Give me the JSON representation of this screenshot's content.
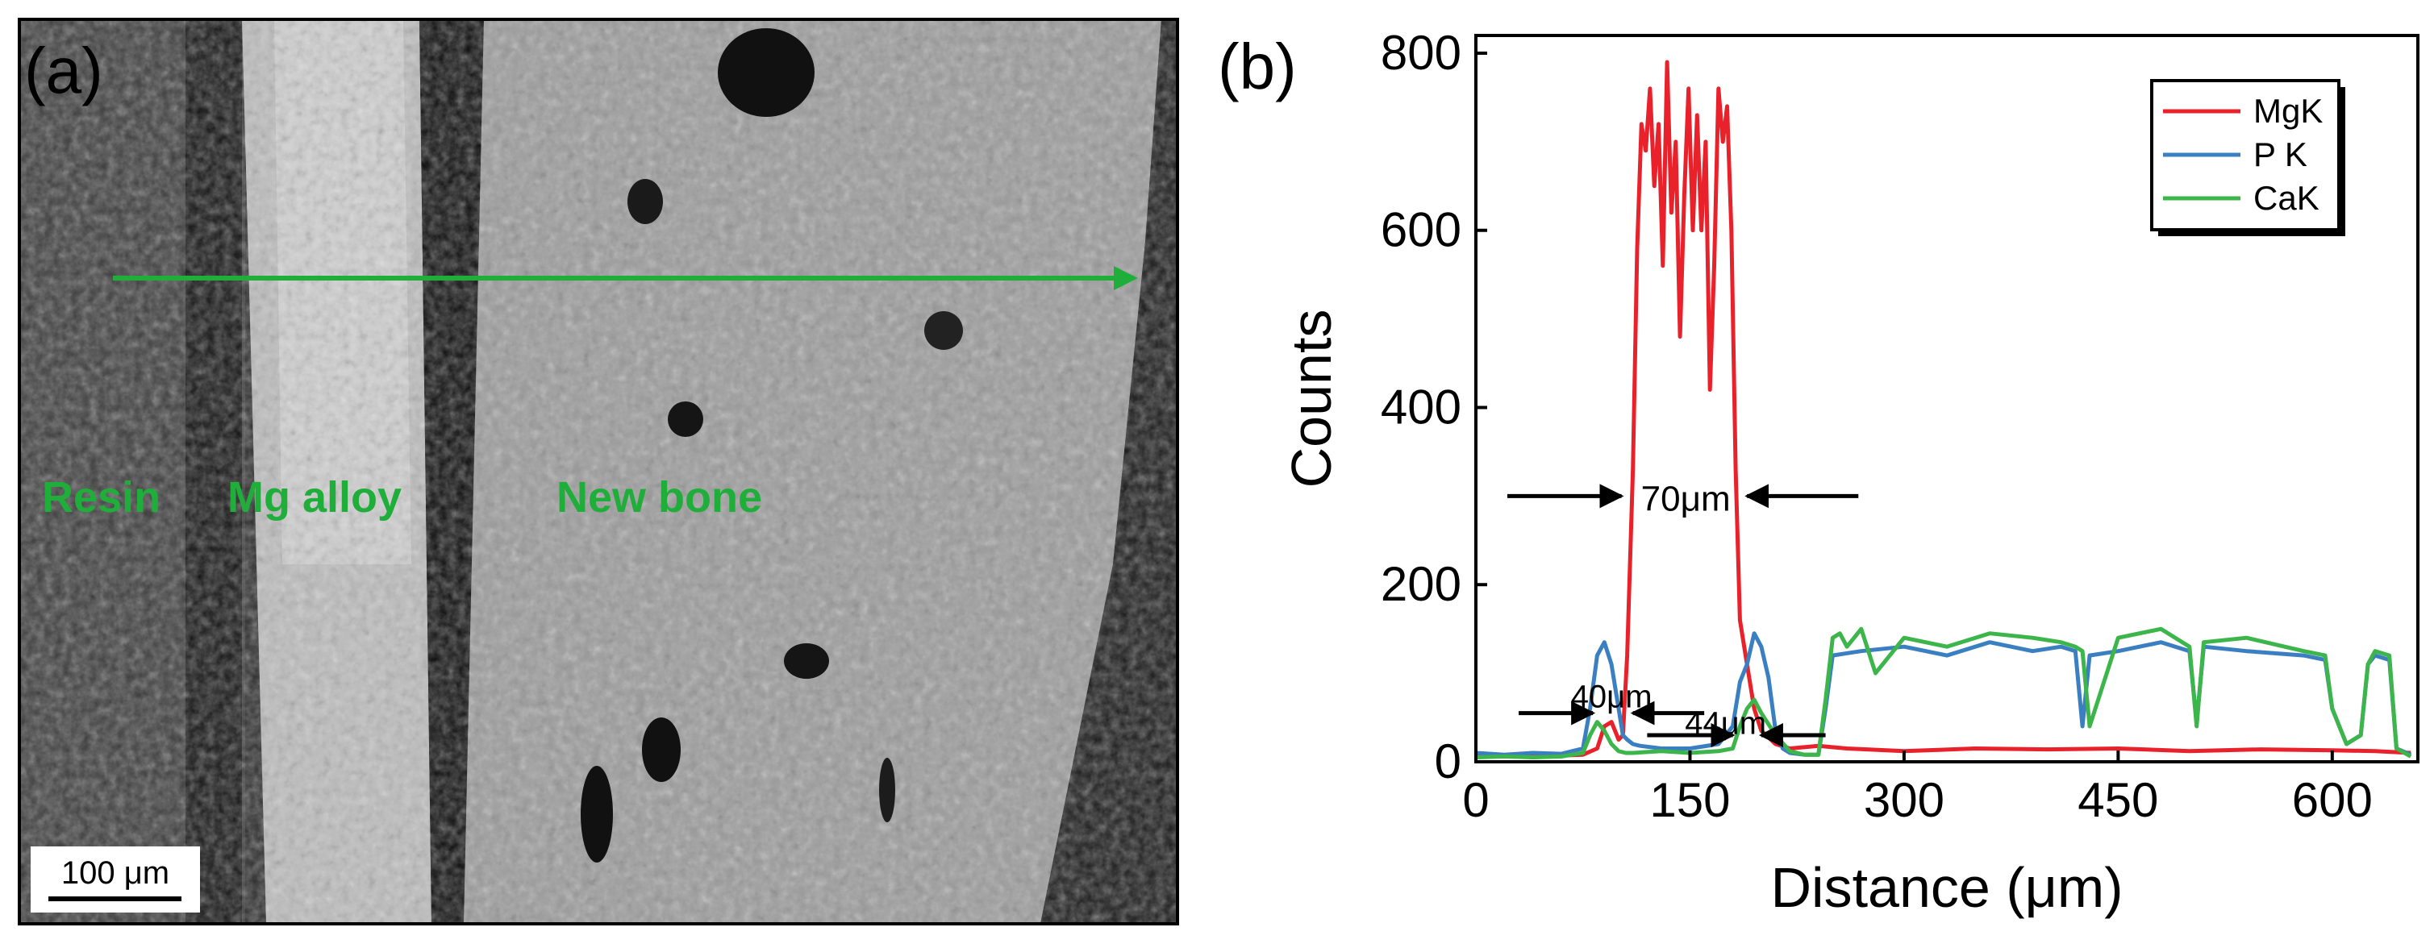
{
  "panel_a": {
    "label": "(a)",
    "region_labels": [
      "Resin",
      "Mg alloy",
      "New bone"
    ],
    "scale_bar": "100 μm",
    "line_color": "#1fae3a"
  },
  "chart_data": {
    "type": "line",
    "panel_label": "(b)",
    "xlabel": "Distance (μm)",
    "ylabel": "Counts",
    "xlim": [
      0,
      660
    ],
    "ylim": [
      0,
      820
    ],
    "xticks": [
      0,
      150,
      300,
      450,
      600
    ],
    "yticks": [
      0,
      200,
      400,
      600,
      800
    ],
    "grid": false,
    "legend": {
      "position": "top-right"
    },
    "series": [
      {
        "name": "MgK",
        "color": "#e8212a",
        "x": [
          0,
          20,
          40,
          60,
          75,
          85,
          90,
          95,
          100,
          103,
          106,
          110,
          113,
          116,
          119,
          122,
          125,
          128,
          131,
          134,
          137,
          140,
          143,
          146,
          149,
          152,
          155,
          158,
          161,
          164,
          167,
          170,
          173,
          176,
          179,
          182,
          185,
          190,
          195,
          200,
          210,
          220,
          240,
          260,
          300,
          350,
          400,
          450,
          500,
          550,
          600,
          630,
          655
        ],
        "y": [
          8,
          6,
          8,
          7,
          8,
          15,
          40,
          45,
          25,
          30,
          120,
          330,
          580,
          720,
          690,
          760,
          650,
          720,
          560,
          790,
          620,
          700,
          480,
          640,
          760,
          600,
          730,
          600,
          700,
          420,
          560,
          760,
          700,
          740,
          600,
          330,
          160,
          110,
          60,
          35,
          20,
          15,
          18,
          15,
          12,
          15,
          14,
          15,
          12,
          14,
          13,
          12,
          10
        ]
      },
      {
        "name": "P K",
        "color": "#3a7fc1",
        "x": [
          0,
          20,
          40,
          60,
          75,
          80,
          85,
          90,
          95,
          100,
          103,
          106,
          110,
          115,
          130,
          150,
          170,
          180,
          185,
          190,
          195,
          200,
          205,
          210,
          215,
          220,
          230,
          240,
          245,
          250,
          270,
          300,
          330,
          360,
          390,
          410,
          420,
          425,
          430,
          450,
          480,
          500,
          505,
          510,
          540,
          580,
          595,
          600,
          610,
          620,
          625,
          630,
          640,
          645,
          655
        ],
        "y": [
          10,
          8,
          10,
          9,
          15,
          60,
          120,
          135,
          110,
          60,
          30,
          25,
          20,
          18,
          15,
          15,
          20,
          40,
          90,
          110,
          145,
          130,
          95,
          35,
          15,
          10,
          8,
          8,
          60,
          120,
          125,
          130,
          120,
          135,
          125,
          130,
          125,
          40,
          120,
          125,
          135,
          125,
          45,
          130,
          125,
          120,
          115,
          60,
          20,
          30,
          110,
          120,
          115,
          15,
          8
        ]
      },
      {
        "name": "CaK",
        "color": "#3cb54a",
        "x": [
          0,
          20,
          40,
          60,
          75,
          80,
          85,
          90,
          95,
          100,
          105,
          110,
          130,
          150,
          170,
          180,
          185,
          190,
          195,
          200,
          210,
          220,
          230,
          240,
          245,
          250,
          255,
          260,
          270,
          280,
          300,
          330,
          360,
          390,
          410,
          420,
          425,
          430,
          450,
          480,
          500,
          505,
          510,
          540,
          580,
          595,
          600,
          610,
          620,
          625,
          630,
          640,
          645,
          655
        ],
        "y": [
          5,
          6,
          5,
          6,
          10,
          30,
          45,
          35,
          20,
          12,
          10,
          10,
          12,
          10,
          12,
          15,
          40,
          60,
          70,
          55,
          30,
          12,
          8,
          8,
          70,
          140,
          145,
          130,
          150,
          100,
          140,
          130,
          145,
          140,
          135,
          130,
          125,
          40,
          140,
          150,
          130,
          40,
          135,
          140,
          125,
          120,
          60,
          20,
          30,
          110,
          125,
          120,
          15,
          6
        ]
      }
    ],
    "annotations": [
      {
        "text": "70μm",
        "x": 147,
        "y": 300
      },
      {
        "text": "40μm",
        "x": 95,
        "y": 78
      },
      {
        "text": "44μm",
        "x": 175,
        "y": 48
      }
    ]
  }
}
